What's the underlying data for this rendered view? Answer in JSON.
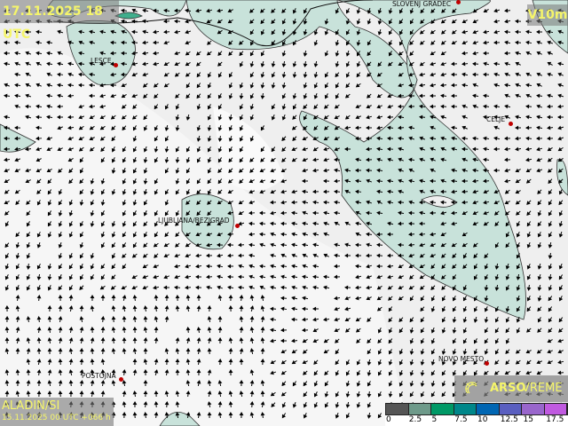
{
  "header": {
    "valid_time": "17.11.2025 18 UTC",
    "variable": "V10m"
  },
  "model": {
    "name": "ALADIN/SI",
    "run": "15.11.2025 00 UTC +066 h"
  },
  "brand": {
    "bold": "ARSO",
    "light": "VREME",
    "icon": "sun-logo-icon"
  },
  "legend": {
    "colors": [
      "#555555",
      "#6e9a8a",
      "#009966",
      "#00878a",
      "#0066b3",
      "#5a5fc0",
      "#9966cc",
      "#c05ae0"
    ],
    "labels": [
      "0",
      "2.5",
      "5",
      "7.5",
      "10",
      "12.5",
      "15",
      "17.5"
    ]
  },
  "cities": [
    {
      "name": "SLOVENJ GRADEC"
    },
    {
      "name": "LESCE"
    },
    {
      "name": "CELJE"
    },
    {
      "name": "LJUBLJANA/BEZIGRAD"
    },
    {
      "name": "NOVO MESTO"
    },
    {
      "name": "POSTOJNA"
    }
  ],
  "colors": {
    "shade": "#c8e2da",
    "text": "#f5f56a",
    "city_dot": "#c00000"
  }
}
